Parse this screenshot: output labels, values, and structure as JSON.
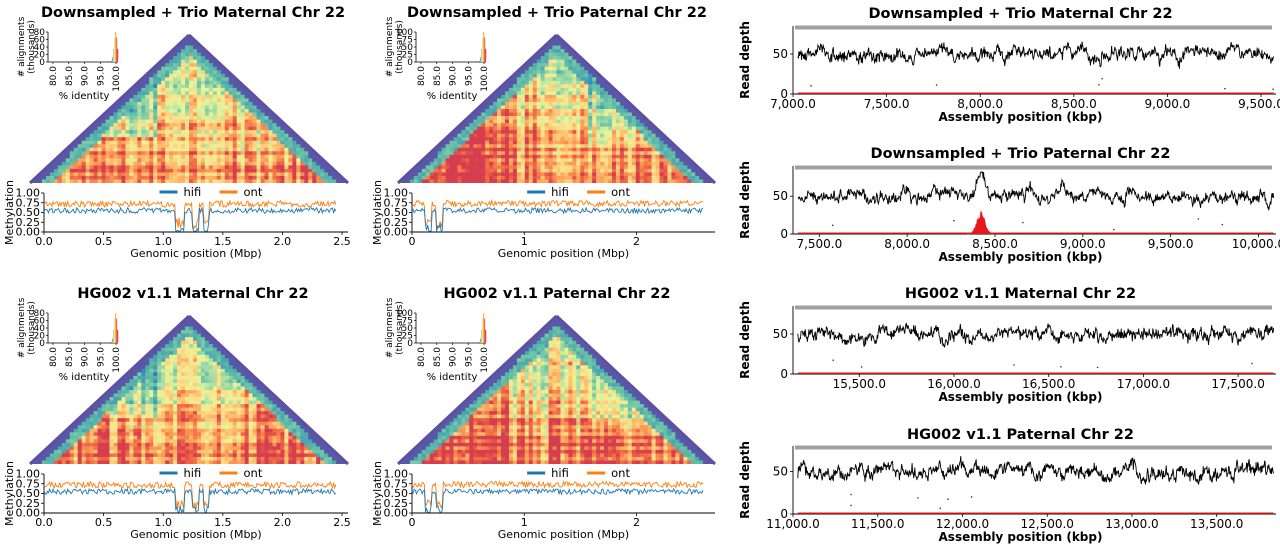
{
  "colors": {
    "hifi": "#1f77b4",
    "ont": "#ff7f0e",
    "depth_line": "#000000",
    "depth_low": "#e41a1c",
    "coverage_bar": "#a0a0a0",
    "heatmap_edge": "#5e4fa2"
  },
  "colormap": "Spectral_r",
  "chart_data": [
    {
      "type": "heatmap",
      "title": "Downsampled + Trio Maternal Chr 22",
      "description_id": "triangle-identity-heatmap",
      "inset": {
        "xlabel": "% identity",
        "ylabel": "# alignments\n(thousands)",
        "xticks": [
          "80.0",
          "85.0",
          "90.0",
          "95.0",
          "100.0"
        ],
        "yticks": [
          "0",
          "20",
          "40",
          "60",
          "80"
        ]
      },
      "methylation": {
        "ylabel": "Methylation",
        "xlabel": "Genomic position (Mbp)",
        "xticks": [
          "0.0",
          "0.5",
          "1.0",
          "1.5",
          "2.0",
          "2.5"
        ],
        "yticks": [
          "0.00",
          "0.25",
          "0.50",
          "0.75",
          "1.00"
        ],
        "xlim": [
          0,
          2.55
        ],
        "ylim": [
          0,
          1
        ],
        "legend": [
          "hifi",
          "ont"
        ],
        "hifi_mean": 0.55,
        "ont_mean": 0.72,
        "gaps_mbp": [
          [
            1.1,
            1.18
          ],
          [
            1.24,
            1.3
          ],
          [
            1.34,
            1.38
          ]
        ]
      }
    },
    {
      "type": "heatmap",
      "title": "Downsampled + Trio Paternal Chr 22",
      "inset": {
        "xlabel": "% identity",
        "ylabel": "# alignments\n(thousands)",
        "xticks": [
          "80.0",
          "85.0",
          "90.0",
          "95.0",
          "100.0"
        ],
        "yticks": [
          "0",
          "25",
          "50",
          "75",
          "100"
        ]
      },
      "methylation": {
        "ylabel": "Methylation",
        "xlabel": "Genomic position (Mbp)",
        "xticks": [
          "0",
          "1",
          "2"
        ],
        "yticks": [
          "0.00",
          "0.25",
          "0.50",
          "0.75",
          "1.00"
        ],
        "xlim": [
          0,
          2.7
        ],
        "ylim": [
          0,
          1
        ],
        "legend": [
          "hifi",
          "ont"
        ],
        "hifi_mean": 0.55,
        "ont_mean": 0.73,
        "gaps_mbp": [
          [
            0.12,
            0.18
          ],
          [
            0.22,
            0.28
          ]
        ]
      }
    },
    {
      "type": "heatmap",
      "title": "HG002 v1.1 Maternal Chr 22",
      "inset": {
        "xlabel": "% identity",
        "ylabel": "# alignments\n(thousands)",
        "xticks": [
          "80.0",
          "85.0",
          "90.0",
          "95.0",
          "100.0"
        ],
        "yticks": [
          "0",
          "20",
          "40",
          "60",
          "80"
        ]
      },
      "methylation": {
        "ylabel": "Methylation",
        "xlabel": "Genomic position (Mbp)",
        "xticks": [
          "0.0",
          "0.5",
          "1.0",
          "1.5",
          "2.0",
          "2.5"
        ],
        "yticks": [
          "0.00",
          "0.25",
          "0.50",
          "0.75",
          "1.00"
        ],
        "xlim": [
          0,
          2.55
        ],
        "ylim": [
          0,
          1
        ],
        "legend": [
          "hifi",
          "ont"
        ],
        "hifi_mean": 0.55,
        "ont_mean": 0.72,
        "gaps_mbp": [
          [
            1.1,
            1.18
          ],
          [
            1.24,
            1.3
          ],
          [
            1.34,
            1.38
          ]
        ]
      }
    },
    {
      "type": "heatmap",
      "title": "HG002 v1.1 Paternal Chr 22",
      "inset": {
        "xlabel": "% identity",
        "ylabel": "# alignments\n(thousands)",
        "xticks": [
          "80.0",
          "85.0",
          "90.0",
          "95.0",
          "100.0"
        ],
        "yticks": [
          "0",
          "25",
          "50",
          "75",
          "100"
        ]
      },
      "methylation": {
        "ylabel": "Methylation",
        "xlabel": "Genomic position (Mbp)",
        "xticks": [
          "0",
          "1",
          "2"
        ],
        "yticks": [
          "0.00",
          "0.25",
          "0.50",
          "0.75",
          "1.00"
        ],
        "xlim": [
          0,
          2.7
        ],
        "ylim": [
          0,
          1
        ],
        "legend": [
          "hifi",
          "ont"
        ],
        "hifi_mean": 0.55,
        "ont_mean": 0.73,
        "gaps_mbp": [
          [
            0.12,
            0.18
          ],
          [
            0.22,
            0.28
          ]
        ]
      }
    },
    {
      "type": "line",
      "title": "Downsampled + Trio Maternal Chr 22",
      "xlabel": "Assembly position (kbp)",
      "ylabel": "Read depth",
      "xlim": [
        7000,
        9580
      ],
      "ylim": [
        0,
        85
      ],
      "xticks": [
        "7,000.0",
        "7,500.0",
        "8,000.0",
        "8,500.0",
        "9,000.0",
        "9,500.0"
      ],
      "xtick_values": [
        7000,
        7500,
        8000,
        8500,
        9000,
        9500
      ],
      "yticks": [
        "0",
        "50"
      ],
      "ytick_values": [
        0,
        50
      ],
      "depth_mean": 50,
      "peak": null
    },
    {
      "type": "line",
      "title": "Downsampled + Trio Paternal Chr 22",
      "xlabel": "Assembly position (kbp)",
      "ylabel": "Read depth",
      "xlim": [
        7350,
        10100
      ],
      "ylim": [
        0,
        90
      ],
      "xticks": [
        "7,500.0",
        "8,000.0",
        "8,500.0",
        "9,000.0",
        "9,500.0",
        "10,000.0"
      ],
      "xtick_values": [
        7500,
        8000,
        8500,
        9000,
        9500,
        10000
      ],
      "yticks": [
        "0",
        "50"
      ],
      "ytick_values": [
        0,
        50
      ],
      "depth_mean": 50,
      "peak": {
        "x": 8420,
        "y": 85,
        "red_max": 30
      }
    },
    {
      "type": "line",
      "title": "HG002 v1.1 Maternal Chr 22",
      "xlabel": "Assembly position (kbp)",
      "ylabel": "Read depth",
      "xlim": [
        15150,
        17700
      ],
      "ylim": [
        0,
        85
      ],
      "xticks": [
        "15,500.0",
        "16,000.0",
        "16,500.0",
        "17,000.0",
        "17,500.0"
      ],
      "xtick_values": [
        15500,
        16000,
        16500,
        17000,
        17500
      ],
      "yticks": [
        "0",
        "50"
      ],
      "ytick_values": [
        0,
        50
      ],
      "depth_mean": 50,
      "peak": null
    },
    {
      "type": "line",
      "title": "HG002 v1.1 Paternal Chr 22",
      "xlabel": "Assembly position (kbp)",
      "ylabel": "Read depth",
      "xlim": [
        11000,
        13850
      ],
      "ylim": [
        0,
        80
      ],
      "xticks": [
        "11,000.0",
        "11,500.0",
        "12,000.0",
        "12,500.0",
        "13,000.0",
        "13,500.0"
      ],
      "xtick_values": [
        11000,
        11500,
        12000,
        12500,
        13000,
        13500
      ],
      "yticks": [
        "0",
        "50"
      ],
      "ytick_values": [
        0,
        50
      ],
      "depth_mean": 50,
      "peak": null
    }
  ]
}
